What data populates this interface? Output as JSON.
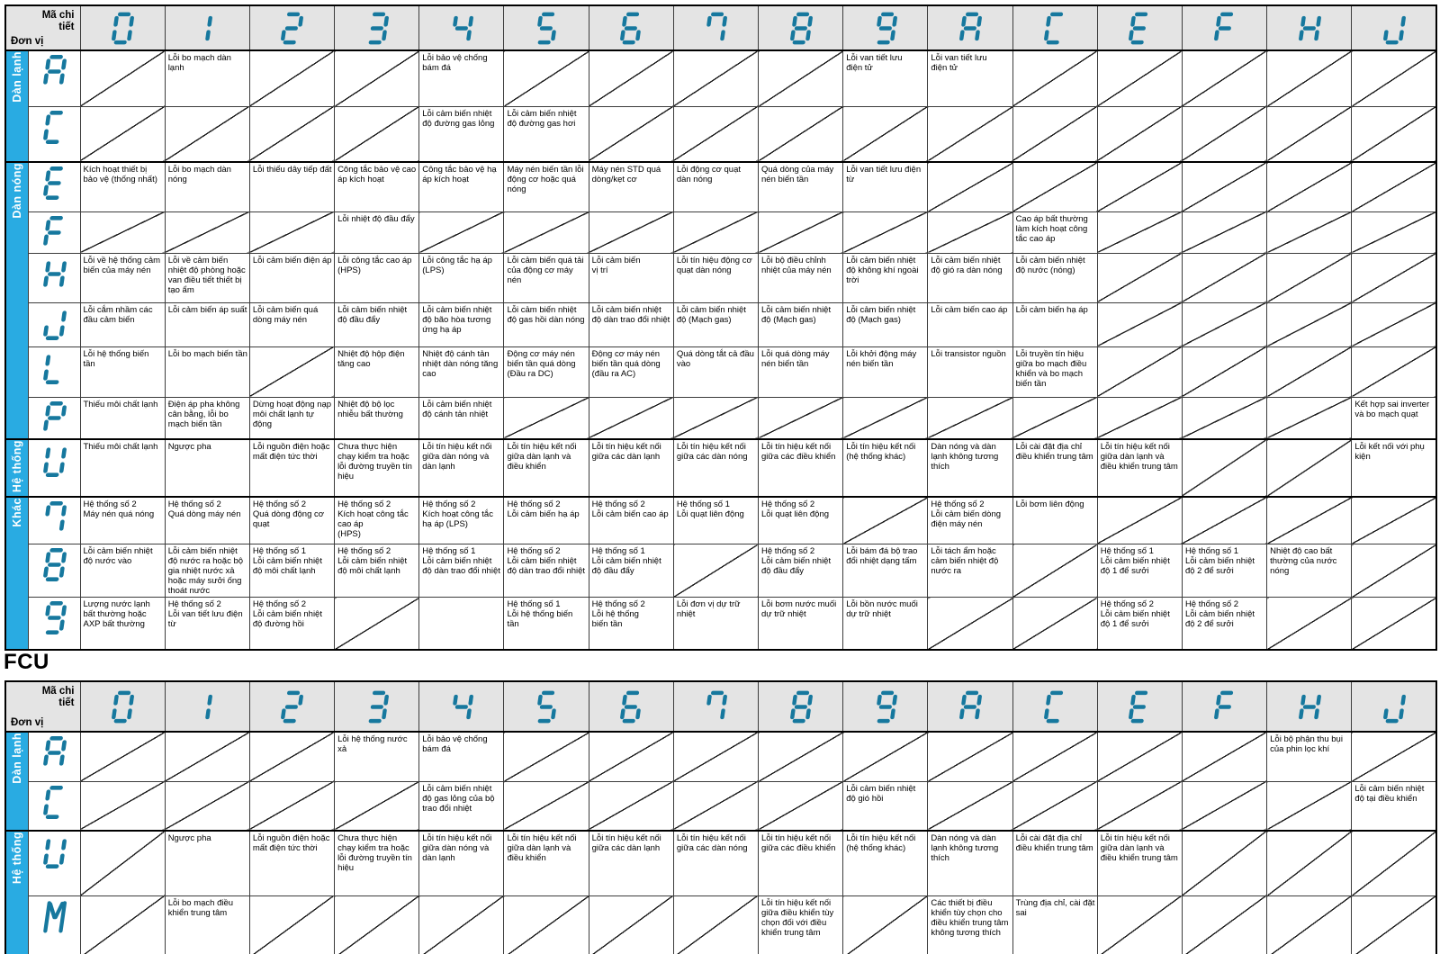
{
  "corner": {
    "code_label": "Mã chi tiết",
    "unit_label": "Đơn vị"
  },
  "columns": [
    "0",
    "1",
    "2",
    "3",
    "4",
    "5",
    "6",
    "7",
    "8",
    "9",
    "A",
    "C",
    "E",
    "F",
    "H",
    "J"
  ],
  "fcu_title": "FCU",
  "colors": {
    "accent_cyan": "#29ABE2",
    "segment_teal": "#16789E",
    "header_gray": "#e4e4e4"
  },
  "table1": {
    "groups": [
      {
        "label": "Dàn lạnh",
        "rows": [
          {
            "unit": "A",
            "cells": {
              "1": "Lỗi bo mạch dàn lạnh",
              "4": "Lỗi bảo vệ chống bám đá",
              "9": "Lỗi van tiết lưu\nđiện tử",
              "10": "Lỗi van tiết lưu\nđiện tử"
            }
          },
          {
            "unit": "C",
            "cells": {
              "4": "Lỗi cảm biến nhiệt độ đường gas lỏng",
              "5": "Lỗi cảm biến nhiệt độ đường gas hơi"
            }
          }
        ]
      },
      {
        "label": "Dàn nóng",
        "rows": [
          {
            "unit": "E",
            "cells": {
              "0": "Kích hoạt thiết bị bảo vệ (thống nhất)",
              "1": "Lỗi bo mạch dàn nóng",
              "2": "Lỗi thiếu dây tiếp đất",
              "3": "Công tắc bảo vệ cao áp kích hoạt",
              "4": "Công tắc bảo vệ hạ áp kích hoạt",
              "5": "Máy nén biến tần lỗi động cơ hoặc quá nóng",
              "6": "Máy nén STD quá dòng/kẹt cơ",
              "7": "Lỗi động cơ quạt dàn nóng",
              "8": "Quá dòng của máy nén biến tần",
              "9": "Lỗi van tiết lưu điện từ"
            }
          },
          {
            "unit": "F",
            "cells": {
              "3": "Lỗi nhiệt độ đầu đẩy",
              "11": "Cao áp bất thường làm kích hoạt công tắc cao áp"
            }
          },
          {
            "unit": "H",
            "cells": {
              "0": "Lỗi về hệ thống cảm biến của máy nén",
              "1": "Lỗi về cảm biến nhiệt độ phòng hoặc van điều tiết thiết bị tạo ẩm",
              "2": "Lỗi cảm biến điện áp",
              "3": "Lỗi công tắc cao áp (HPS)",
              "4": "Lỗi công tắc hạ áp (LPS)",
              "5": "Lỗi cảm biến quá tải của động cơ máy nén",
              "6": "Lỗi cảm biến\nvị trí",
              "7": "Lỗi tín hiệu động cơ quạt dàn nóng",
              "8": "Lỗi bộ điều chỉnh nhiệt của máy nén",
              "9": "Lỗi cảm biến nhiệt độ không khí ngoài trời",
              "10": "Lỗi cảm biến nhiệt độ gió ra dàn nóng",
              "11": "Lỗi cảm biến nhiệt độ nước (nóng)"
            }
          },
          {
            "unit": "J",
            "cells": {
              "0": "Lỗi cắm nhầm các đầu cảm biến",
              "1": "Lỗi cảm biến áp suất",
              "2": "Lỗi cảm biến quá dòng máy nén",
              "3": "Lỗi cảm biến nhiệt độ đầu đẩy",
              "4": "Lỗi cảm biến nhiệt độ bão hòa tương ứng hạ áp",
              "5": "Lỗi cảm biến nhiệt độ gas hồi dàn nóng",
              "6": "Lỗi cảm biến nhiệt độ dàn trao đổi nhiệt",
              "7": "Lỗi cảm biến nhiệt độ (Mạch gas)",
              "8": "Lỗi cảm biến nhiệt độ (Mạch gas)",
              "9": "Lỗi cảm biến nhiệt độ (Mạch gas)",
              "10": "Lỗi cảm biến cao áp",
              "11": "Lỗi cảm biến hạ áp"
            }
          },
          {
            "unit": "L",
            "cells": {
              "0": "Lỗi hệ thống biến tần",
              "1": "Lỗi bo mạch biến tần",
              "3": "Nhiệt độ hộp điện tăng cao",
              "4": "Nhiệt độ cánh tản nhiệt dàn nóng tăng cao",
              "5": "Động cơ máy nén biến tần quá dòng (Đầu ra DC)",
              "6": "Động cơ máy nén biến tần quá dòng (đầu ra AC)",
              "7": "Quá dòng tắt cả đầu vào",
              "8": "Lỗi quá dòng máy nén biến tần",
              "9": "Lỗi khởi động máy nén biến tần",
              "10": "Lỗi transistor nguồn",
              "11": "Lỗi truyền tín hiệu giữa bo mạch điều khiển và bo mạch biến tần"
            }
          },
          {
            "unit": "P",
            "cells": {
              "0": "Thiếu môi chất lạnh",
              "1": "Điện áp pha không cân bằng, lỗi bo mạch biến tần",
              "2": "Dừng hoạt động nạp môi chất lạnh tự động",
              "3": "Nhiệt độ bộ lọc nhiễu bất thường",
              "4": "Lỗi cảm biến nhiệt độ cánh tản nhiệt",
              "15": "Kết hợp sai inverter và bo mạch quạt"
            }
          }
        ]
      },
      {
        "label": "Hệ thống",
        "rows": [
          {
            "unit": "U",
            "cells": {
              "0": "Thiếu môi chất lạnh",
              "1": "Ngược pha",
              "2": "Lỗi nguồn điện hoặc mất điện tức thời",
              "3": "Chưa thực hiện chạy kiểm tra hoặc lỗi đường truyền tín hiệu",
              "4": "Lỗi tín hiệu kết nối giữa dàn nóng và dàn lạnh",
              "5": "Lỗi tín hiệu kết nối giữa dàn lạnh và điều khiển",
              "6": "Lỗi tín hiệu kết nối giữa các dàn lạnh",
              "7": "Lỗi tín hiệu kết nối giữa các dàn nóng",
              "8": "Lỗi tín hiệu kết nối giữa các điều khiển",
              "9": "Lỗi tín hiệu kết nối (hệ thống khác)",
              "10": "Dàn nóng và dàn lạnh không tương thích",
              "11": "Lỗi cài đặt địa chỉ điều khiển trung tâm",
              "12": "Lỗi tín hiệu kết nối giữa dàn lạnh và điều khiển trung tâm",
              "15": "Lỗi kết nối với phụ kiện"
            }
          }
        ]
      },
      {
        "label": "Khác",
        "rows": [
          {
            "unit": "7",
            "cells": {
              "0": "Hệ thống số 2\nMáy nén quá nóng",
              "1": "Hệ thống số 2\nQuá dòng máy nén",
              "2": "Hệ thống số 2\nQuá dòng động cơ quạt",
              "3": "Hệ thống số 2\nKích hoạt công tắc cao áp\n(HPS)",
              "4": "Hệ thống số 2\nKích hoạt công tắc hạ áp (LPS)",
              "5": "Hệ thống số 2\nLỗi cảm biến hạ áp",
              "6": "Hệ thống số 2\nLỗi cảm biến cao áp",
              "7": "Hệ thống số 1\nLỗi quạt liên động",
              "8": "Hệ thống số 2\nLỗi quạt liên động",
              "10": "Hệ thống số 2\nLỗi cảm biến dòng điện máy nén",
              "11": "Lỗi bơm liên động"
            }
          },
          {
            "unit": "8",
            "cells": {
              "0": "Lỗi cảm biến nhiệt độ nước vào",
              "1": "Lỗi cảm biến nhiệt độ nước ra hoặc bộ gia nhiệt nước xả hoặc máy sưởi ống thoát nước",
              "2": "Hệ thống số 1\nLỗi cảm biến nhiệt độ môi chất lạnh",
              "3": "Hệ thống số 2\nLỗi cảm biến nhiệt độ môi chất lạnh",
              "4": "Hệ thống số 1\nLỗi cảm biến nhiệt độ dàn trao đổi nhiệt",
              "5": "Hệ thống số 2\nLỗi cảm biến nhiệt độ dàn trao đổi nhiệt",
              "6": "Hệ thống số 1\nLỗi cảm biến nhiệt độ đầu đẩy",
              "8": "Hệ thống số 2\nLỗi cảm biến nhiệt độ đầu đẩy",
              "9": "Lỗi bám đá bộ trao đổi nhiệt dạng tấm",
              "10": "Lỗi tách ẩm hoặc cảm biến nhiệt độ nước ra",
              "12": "Hệ thống số 1\nLỗi cảm biến nhiệt độ 1 để sưởi",
              "13": "Hệ thống số 1\nLỗi cảm biến nhiệt độ 2 để sưởi",
              "14": "Nhiệt độ cao bất thường của nước nóng"
            }
          },
          {
            "unit": "9",
            "blank_cells": [
              4
            ],
            "cells": {
              "0": "Lượng nước lạnh bất thường hoặc AXP bất thường",
              "1": "Hệ thống số 2\nLỗi van tiết lưu điện từ",
              "2": "Hệ thống số 2\nLỗi cảm biến nhiệt độ đường hồi",
              "5": "Hệ thống số 1\nLỗi hệ thống biến tần",
              "6": "Hệ thống số 2\nLỗi hệ thống\nbiến tần",
              "7": "Lỗi đơn vị dự trữ nhiệt",
              "8": "Lỗi bơm nước muối dự trữ nhiệt",
              "9": "Lỗi bồn nước muối dự trữ nhiệt",
              "12": "Hệ thống số 2\nLỗi cảm biến nhiệt độ 1 để sưởi",
              "13": "Hệ thống số 2\nLỗi cảm biến nhiệt độ 2 để sưởi"
            }
          }
        ]
      }
    ]
  },
  "table2": {
    "groups": [
      {
        "label": "Dàn lạnh",
        "rows": [
          {
            "unit": "A",
            "cells": {
              "3": "Lỗi hệ thống nước xả",
              "4": "Lỗi bảo vệ chống bám đá",
              "14": "Lỗi bộ phận thu bụi của phin lọc khí"
            }
          },
          {
            "unit": "C",
            "cells": {
              "4": "Lỗi cảm biến nhiệt độ gas lỏng của bộ trao đổi nhiệt",
              "9": "Lỗi cảm biến nhiệt độ gió hồi",
              "15": "Lỗi cảm biến nhiệt độ tại điều khiển"
            }
          }
        ]
      },
      {
        "label": "Hệ thống",
        "rows": [
          {
            "unit": "U",
            "cells": {
              "1": "Ngược pha",
              "2": "Lỗi nguồn điện hoặc mất điện tức thời",
              "3": "Chưa thực hiện chạy kiểm tra hoặc lỗi đường truyền tín hiệu",
              "4": "Lỗi tín hiệu kết nối giữa dàn nóng và dàn lạnh",
              "5": "Lỗi tín hiệu kết nối giữa dàn lạnh và điều khiển",
              "6": "Lỗi tín hiệu kết nối giữa các dàn lạnh",
              "7": "Lỗi tín hiệu kết nối giữa các dàn nóng",
              "8": "Lỗi tín hiệu kết nối giữa các điều khiển",
              "9": "Lỗi tín hiệu kết nối (hệ thống khác)",
              "10": "Dàn nóng và dàn lạnh không tương thích",
              "11": "Lỗi cài đặt địa chỉ điều khiển trung tâm",
              "12": "Lỗi tín hiệu kết nối giữa dàn lạnh và điều khiển trung tâm"
            }
          },
          {
            "unit": "M",
            "cells": {
              "1": "Lỗi bo mạch điều khiển trung tâm",
              "8": "Lỗi tín hiệu kết nối giữa điều khiển tùy chọn đối với điều khiển trung tâm",
              "10": "Các thiết bị điều khiển tùy chọn cho điều khiển trung tâm không tương thích",
              "11": "Trùng địa chỉ, cài đặt sai"
            }
          }
        ]
      }
    ]
  }
}
